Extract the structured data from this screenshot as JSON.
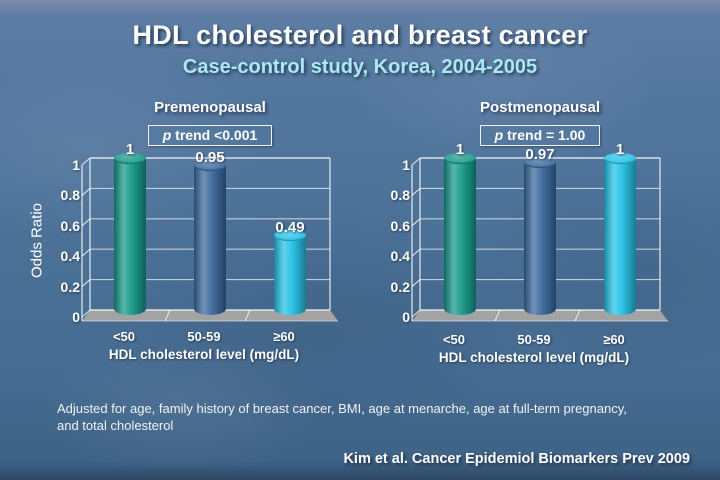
{
  "header": {
    "title": "HDL cholesterol and breast cancer",
    "subtitle": "Case-control study, Korea, 2004-2005"
  },
  "footer": {
    "footnote": "Adjusted for age, family history of breast cancer, BMI, age at menarche, age at full-term pregnancy, and total cholesterol",
    "citation": "Kim et al. Cancer Epidemiol Biomarkers Prev 2009"
  },
  "colors": {
    "background": "#4d7298",
    "subtitle_text": "#a9e9f4",
    "bar_teal": "#159888",
    "bar_blue": "#3a689b",
    "bar_cyan": "#24c0e4",
    "floor_gray": "#a3a3a3",
    "frame_white": "#ffffff"
  },
  "chart_data": [
    {
      "type": "bar",
      "title": "Premenopausal",
      "annotation_p": "p",
      "annotation_rest": " trend <0.001",
      "categories": [
        "<50",
        "50-59",
        "≥60"
      ],
      "values": [
        1,
        0.95,
        0.49
      ],
      "value_labels": [
        "1",
        "0.95",
        "0.49"
      ],
      "xlabel": "HDL cholesterol level (mg/dL)",
      "ylabel": "Odds Ratio",
      "ylim": [
        0,
        1
      ],
      "yticks": [
        1,
        0.8,
        0.6,
        0.4,
        0.2,
        0
      ],
      "ytick_labels": [
        "1",
        "0.8",
        "0.6",
        "0.4",
        "0.2",
        "0"
      ],
      "bar_colors": [
        "#159888",
        "#3a689b",
        "#24c0e4"
      ],
      "grid": true,
      "legend": "none"
    },
    {
      "type": "bar",
      "title": "Postmenopausal",
      "annotation_p": "p",
      "annotation_rest": " trend = 1.00",
      "categories": [
        "<50",
        "50-59",
        "≥60"
      ],
      "values": [
        1,
        0.97,
        1
      ],
      "value_labels": [
        "1",
        "0.97",
        "1"
      ],
      "xlabel": "HDL cholesterol level (mg/dL)",
      "ylabel": "",
      "ylim": [
        0,
        1
      ],
      "yticks": [
        1,
        0.8,
        0.6,
        0.4,
        0.2,
        0
      ],
      "ytick_labels": [
        "1",
        "0.8",
        "0.6",
        "0.4",
        "0.2",
        "0"
      ],
      "bar_colors": [
        "#159888",
        "#3a689b",
        "#24c0e4"
      ],
      "grid": true,
      "legend": "none"
    }
  ]
}
